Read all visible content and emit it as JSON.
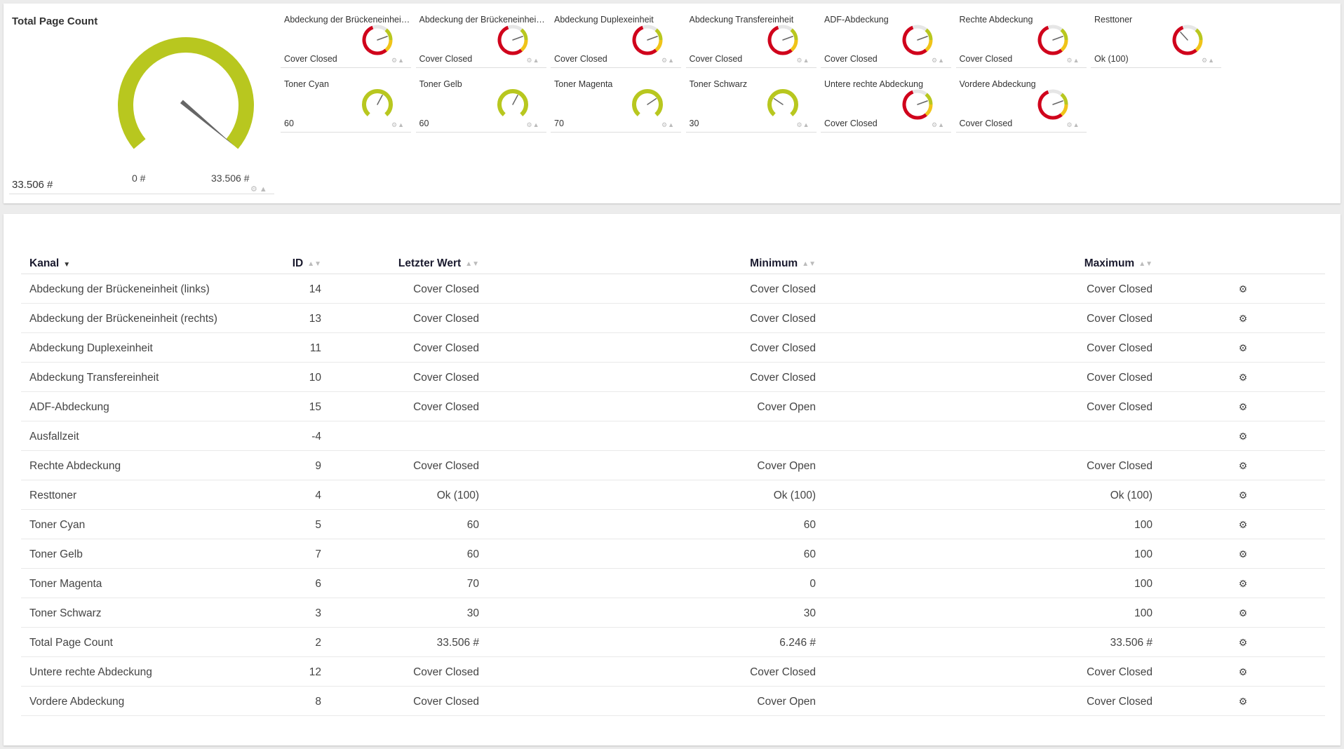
{
  "big_gauge": {
    "title": "Total Page Count",
    "value_text": "33.506 #",
    "min_label": "0 #",
    "max_label": "33.506 #",
    "fraction": 1.0,
    "color": "#b8c71f"
  },
  "small_gauges": [
    {
      "label": "Abdeckung der Brückeneinheit (links)",
      "value": "Cover Closed",
      "type": "status",
      "needle": 0.75
    },
    {
      "label": "Abdeckung der Brückeneinheit (rechts)",
      "value": "Cover Closed",
      "type": "status",
      "needle": 0.75
    },
    {
      "label": "Abdeckung Duplexeinheit",
      "value": "Cover Closed",
      "type": "status",
      "needle": 0.75
    },
    {
      "label": "Abdeckung Transfereinheit",
      "value": "Cover Closed",
      "type": "status",
      "needle": 0.75
    },
    {
      "label": "ADF-Abdeckung",
      "value": "Cover Closed",
      "type": "status",
      "needle": 0.75
    },
    {
      "label": "Rechte Abdeckung",
      "value": "Cover Closed",
      "type": "status",
      "needle": 0.75
    },
    {
      "label": "Resttoner",
      "value": "Ok (100)",
      "type": "status",
      "needle": 0.35
    },
    {
      "label": "Toner Cyan",
      "value": "60",
      "type": "level",
      "needle": 0.6
    },
    {
      "label": "Toner Gelb",
      "value": "60",
      "type": "level",
      "needle": 0.6
    },
    {
      "label": "Toner Magenta",
      "value": "70",
      "type": "level",
      "needle": 0.7
    },
    {
      "label": "Toner Schwarz",
      "value": "30",
      "type": "level",
      "needle": 0.3
    },
    {
      "label": "Untere rechte Abdeckung",
      "value": "Cover Closed",
      "type": "status",
      "needle": 0.75
    },
    {
      "label": "Vordere Abdeckung",
      "value": "Cover Closed",
      "type": "status",
      "needle": 0.75
    }
  ],
  "colors": {
    "green": "#b8c71f",
    "yellow": "#f0c419",
    "red": "#d0021b",
    "gray": "#e6e6e6",
    "needle": "#666666"
  },
  "table": {
    "headers": {
      "kanal": "Kanal",
      "id": "ID",
      "letzter": "Letzter Wert",
      "minimum": "Minimum",
      "maximum": "Maximum"
    },
    "rows": [
      {
        "kanal": "Abdeckung der Brückeneinheit (links)",
        "id": "14",
        "letzter": "Cover Closed",
        "minimum": "Cover Closed",
        "maximum": "Cover Closed"
      },
      {
        "kanal": "Abdeckung der Brückeneinheit (rechts)",
        "id": "13",
        "letzter": "Cover Closed",
        "minimum": "Cover Closed",
        "maximum": "Cover Closed"
      },
      {
        "kanal": "Abdeckung Duplexeinheit",
        "id": "11",
        "letzter": "Cover Closed",
        "minimum": "Cover Closed",
        "maximum": "Cover Closed"
      },
      {
        "kanal": "Abdeckung Transfereinheit",
        "id": "10",
        "letzter": "Cover Closed",
        "minimum": "Cover Closed",
        "maximum": "Cover Closed"
      },
      {
        "kanal": "ADF-Abdeckung",
        "id": "15",
        "letzter": "Cover Closed",
        "minimum": "Cover Open",
        "maximum": "Cover Closed"
      },
      {
        "kanal": "Ausfallzeit",
        "id": "-4",
        "letzter": "",
        "minimum": "",
        "maximum": ""
      },
      {
        "kanal": "Rechte Abdeckung",
        "id": "9",
        "letzter": "Cover Closed",
        "minimum": "Cover Open",
        "maximum": "Cover Closed"
      },
      {
        "kanal": "Resttoner",
        "id": "4",
        "letzter": "Ok (100)",
        "minimum": "Ok (100)",
        "maximum": "Ok (100)"
      },
      {
        "kanal": "Toner Cyan",
        "id": "5",
        "letzter": "60",
        "minimum": "60",
        "maximum": "100"
      },
      {
        "kanal": "Toner Gelb",
        "id": "7",
        "letzter": "60",
        "minimum": "60",
        "maximum": "100"
      },
      {
        "kanal": "Toner Magenta",
        "id": "6",
        "letzter": "70",
        "minimum": "0",
        "maximum": "100"
      },
      {
        "kanal": "Toner Schwarz",
        "id": "3",
        "letzter": "30",
        "minimum": "30",
        "maximum": "100"
      },
      {
        "kanal": "Total Page Count",
        "id": "2",
        "letzter": "33.506 #",
        "minimum": "6.246 #",
        "maximum": "33.506 #"
      },
      {
        "kanal": "Untere rechte Abdeckung",
        "id": "12",
        "letzter": "Cover Closed",
        "minimum": "Cover Closed",
        "maximum": "Cover Closed"
      },
      {
        "kanal": "Vordere Abdeckung",
        "id": "8",
        "letzter": "Cover Closed",
        "minimum": "Cover Open",
        "maximum": "Cover Closed"
      }
    ]
  }
}
